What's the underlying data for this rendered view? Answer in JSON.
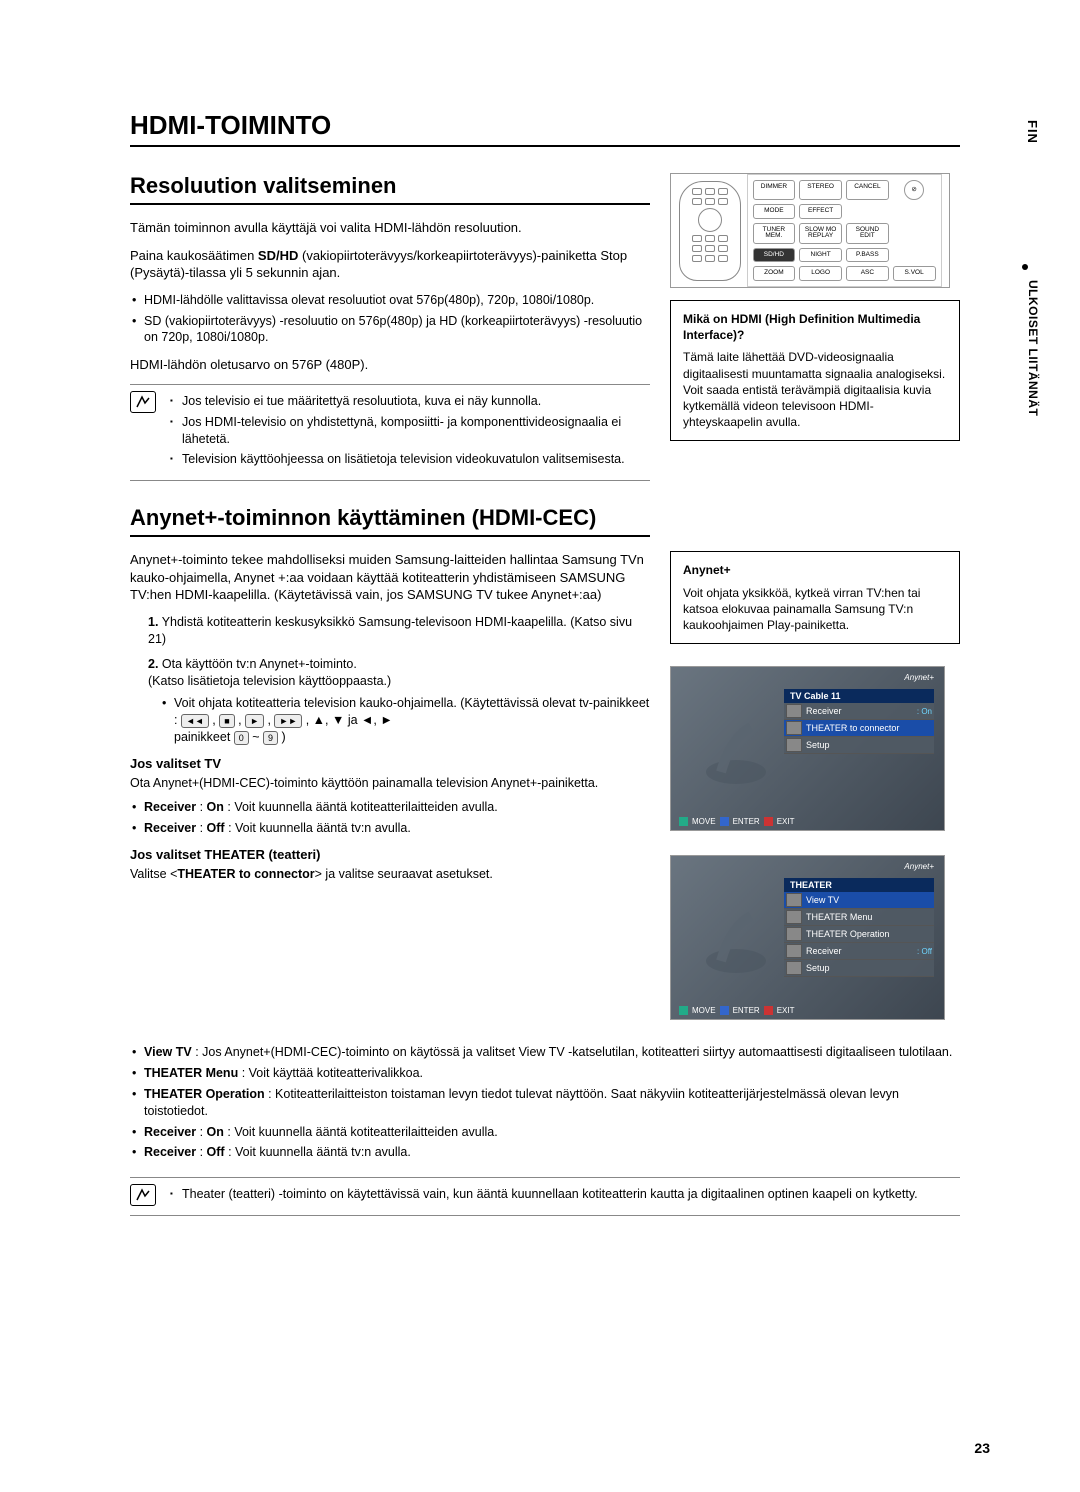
{
  "sideTab": "FIN",
  "sideSection": "ULKOISET LIITÄNNÄT",
  "mainTitle": "HDMI-TOIMINTO",
  "resolution": {
    "heading": "Resoluution valitseminen",
    "intro": "Tämän toiminnon avulla käyttäjä voi valita HDMI-lähdön resoluution.",
    "para1a": "Paina kaukosäätimen ",
    "para1b": "SD/HD",
    "para1c": " (vakiopiirtoterävyys/korkeapiirtoterävyys)-painiketta Stop (Pysäytä)-tilassa yli 5 sekunnin ajan.",
    "b1": "HDMI-lähdölle valittavissa olevat resoluutiot ovat 576p(480p), 720p, 1080i/1080p.",
    "b2": "SD (vakiopiirtoterävyys) -resoluutio on 576p(480p) ja HD (korkeapiirtoterävyys) -resoluutio on 720p, 1080i/1080p.",
    "para2": "HDMI-lähdön oletusarvo on 576P (480P).",
    "note1": "Jos televisio ei tue määritettyä resoluutiota, kuva ei näy kunnolla.",
    "note2": "Jos HDMI-televisio on yhdistettynä, komposiitti- ja komponenttivideosignaalia ei lähetetä.",
    "note3": "Television käyttöohjeessa on lisätietoja television videokuvatulon valitsemisesta."
  },
  "remoteButtons": {
    "r1": [
      "DIMMER",
      "STEREO",
      "CANCEL"
    ],
    "r2": [
      "MODE",
      "EFFECT",
      "⊘"
    ],
    "r3": [
      "TUNER MEM.",
      "SLOW MO REPLAY",
      "SOUND EDIT"
    ],
    "r4": [
      "SD/HD",
      "NIGHT",
      "P.BASS"
    ],
    "r5": [
      "ZOOM",
      "LOGO",
      "ASC",
      "S.VOL"
    ]
  },
  "hdmiBox": {
    "title": "Mikä on HDMI (High Definition Multimedia Interface)?",
    "body": "Tämä laite lähettää DVD-videosignaalia digitaalisesti muuntamatta signaalia analogiseksi. Voit saada entistä terävämpiä digitaalisia kuvia kytkemällä videon televisoon HDMI-yhteyskaapelin avulla."
  },
  "anynet": {
    "heading": "Anynet+-toiminnon käyttäminen (HDMI-CEC)",
    "intro": "Anynet+-toiminto tekee mahdolliseksi muiden Samsung-laitteiden hallintaa Samsung TVn kauko-ohjaimella, Anynet +:aa voidaan käyttää kotiteatterin yhdistämiseen SAMSUNG TV:hen HDMI-kaapelilla. (Käytetävissä vain, jos SAMSUNG TV tukee Anynet+:aa)",
    "step1": "Yhdistä kotiteatterin keskusyksikkö Samsung-televisoon HDMI-kaapelilla. (Katso sivu 21)",
    "step2a": "Ota käyttöön tv:n Anynet+-toiminto.",
    "step2b": "(Katso lisätietoja television käyttöoppaasta.)",
    "step2sub": "Voit ohjata kotiteatteria television kauko-ohjaimella. (Käytettävissä olevat tv-painikkeet :",
    "step2keys": ", ▲, ▼ ja ◄, ►",
    "step2tail": "painikkeet",
    "tvSect": "Jos valitset TV",
    "tvIntro": "Ota Anynet+(HDMI-CEC)-toiminto käyttöön painamalla television Anynet+-painiketta.",
    "tvB1a": "Receiver",
    "tvB1b": " : ",
    "tvB1c": "On",
    "tvB1d": " : Voit kuunnella ääntä kotiteatterilaitteiden avulla.",
    "tvB2a": "Receiver",
    "tvB2b": " : ",
    "tvB2c": "Off",
    "tvB2d": " : Voit kuunnella ääntä tv:n avulla.",
    "thSect": "Jos valitset THEATER (teatteri)",
    "thIntroA": "Valitse <",
    "thIntroB": "THEATER to connector",
    "thIntroC": "> ja valitse seuraavat asetukset.",
    "thB1a": "View TV",
    "thB1b": " : Jos Anynet+(HDMI-CEC)-toiminto on käytössä ja valitset View TV -katselutilan, kotiteatteri siirtyy automaattisesti digitaaliseen tulotilaan.",
    "thB2a": "THEATER Menu",
    "thB2b": " : Voit käyttää kotiteatterivalikkoa.",
    "thB3a": "THEATER Operation",
    "thB3b": " : Kotiteatterilaitteiston toistaman levyn tiedot tulevat näyttöön. Saat näkyviin kotiteatterijärjestelmässä olevan levyn toistotiedot.",
    "thB4a": "Receiver",
    "thB4b": " : ",
    "thB4c": "On",
    "thB4d": " : Voit kuunnella ääntä kotiteatterilaitteiden avulla.",
    "thB5a": "Receiver",
    "thB5b": " : ",
    "thB5c": "Off",
    "thB5d": " : Voit kuunnella ääntä tv:n avulla.",
    "noteEnd": "Theater (teatteri) -toiminto on käytettävissä vain, kun ääntä kuunnellaan kotiteatterin kautta ja digitaalinen optinen kaapeli on kytketty."
  },
  "anynetBox": {
    "title": "Anynet+",
    "body": "Voit ohjata yksikköä, kytkeä virran TV:hen tai katsoa elokuvaa painamalla Samsung TV:n kaukoohjaimen Play-painiketta."
  },
  "tvMenu1": {
    "logo": "Anynet+",
    "header": "TV Cable 11",
    "rows": [
      {
        "label": "Receiver",
        "val": ": On",
        "active": false
      },
      {
        "label": "THEATER to connector",
        "val": "",
        "active": true
      },
      {
        "label": "Setup",
        "val": "",
        "active": false
      }
    ],
    "footer": [
      "MOVE",
      "ENTER",
      "EXIT"
    ]
  },
  "tvMenu2": {
    "logo": "Anynet+",
    "header": "THEATER",
    "rows": [
      {
        "label": "View TV",
        "val": "",
        "active": true
      },
      {
        "label": "THEATER Menu",
        "val": "",
        "active": false
      },
      {
        "label": "THEATER Operation",
        "val": "",
        "active": false
      },
      {
        "label": "Receiver",
        "val": ": Off",
        "active": false
      },
      {
        "label": "Setup",
        "val": "",
        "active": false
      }
    ],
    "footer": [
      "MOVE",
      "ENTER",
      "EXIT"
    ]
  },
  "pageNum": "23"
}
